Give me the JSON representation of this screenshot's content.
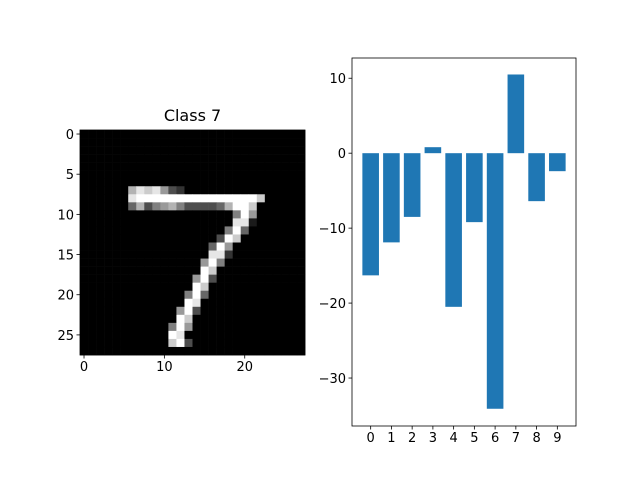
{
  "chart_data": [
    {
      "type": "image",
      "title": "Class 7",
      "xlim": [
        -0.5,
        27.5
      ],
      "ylim": [
        27.5,
        -0.5
      ],
      "xticks": [
        0,
        10,
        20
      ],
      "yticks": [
        0,
        5,
        10,
        15,
        20,
        25
      ],
      "z": [
        [
          0,
          0,
          0,
          0,
          0,
          0,
          0,
          0,
          0,
          0,
          0,
          0,
          0,
          0,
          0,
          0,
          0,
          0,
          0,
          0,
          0,
          0,
          0,
          0,
          0,
          0,
          0,
          0
        ],
        [
          0,
          0,
          0,
          0,
          0,
          0,
          0,
          0,
          0,
          0,
          0,
          0,
          0,
          0,
          0,
          0,
          0,
          0,
          0,
          0,
          0,
          0,
          0,
          0,
          0,
          0,
          0,
          0
        ],
        [
          0,
          0,
          0,
          0,
          0,
          0,
          0,
          0,
          0,
          0,
          0,
          0,
          0,
          0,
          0,
          0,
          0,
          0,
          0,
          0,
          0,
          0,
          0,
          0,
          0,
          0,
          0,
          0
        ],
        [
          0,
          0,
          0,
          0,
          0,
          0,
          0,
          0,
          0,
          0,
          0,
          0,
          0,
          0,
          0,
          0,
          0,
          0,
          0,
          0,
          0,
          0,
          0,
          0,
          0,
          0,
          0,
          0
        ],
        [
          0,
          0,
          0,
          0,
          0,
          0,
          0,
          0,
          0,
          0,
          0,
          0,
          0,
          0,
          0,
          0,
          0,
          0,
          0,
          0,
          0,
          0,
          0,
          0,
          0,
          0,
          0,
          0
        ],
        [
          0,
          0,
          0,
          0,
          0,
          0,
          0,
          0,
          0,
          0,
          0,
          0,
          0,
          0,
          0,
          0,
          0,
          0,
          0,
          0,
          0,
          0,
          0,
          0,
          0,
          0,
          0,
          0
        ],
        [
          0,
          0,
          0,
          0,
          0,
          0,
          0,
          0,
          0,
          0,
          0,
          0,
          0,
          0,
          0,
          0,
          0,
          0,
          0,
          0,
          0,
          0,
          0,
          0,
          0,
          0,
          0,
          0
        ],
        [
          0,
          0,
          0,
          0,
          0,
          0,
          0.7,
          0.9,
          0.8,
          0.9,
          0.6,
          0.3,
          0.2,
          0,
          0,
          0,
          0,
          0,
          0,
          0,
          0,
          0,
          0,
          0,
          0,
          0,
          0,
          0
        ],
        [
          0,
          0,
          0,
          0,
          0,
          0,
          0.9,
          1,
          1,
          1,
          1,
          1,
          1,
          1,
          1,
          1,
          1,
          1,
          1,
          1,
          1,
          1,
          0.8,
          0,
          0,
          0,
          0,
          0
        ],
        [
          0,
          0,
          0,
          0,
          0,
          0,
          0.4,
          0.7,
          0.3,
          0.5,
          0.6,
          0.7,
          0.5,
          0.3,
          0.3,
          0.3,
          0.3,
          0.4,
          0.7,
          1,
          1,
          0.8,
          0,
          0,
          0,
          0,
          0,
          0
        ],
        [
          0,
          0,
          0,
          0,
          0,
          0,
          0,
          0,
          0,
          0,
          0,
          0,
          0,
          0,
          0,
          0,
          0,
          0,
          0,
          0.5,
          1,
          0.6,
          0,
          0,
          0,
          0,
          0,
          0
        ],
        [
          0,
          0,
          0,
          0,
          0,
          0,
          0,
          0,
          0,
          0,
          0,
          0,
          0,
          0,
          0,
          0,
          0,
          0,
          0,
          0.9,
          0.9,
          0.1,
          0,
          0,
          0,
          0,
          0,
          0
        ],
        [
          0,
          0,
          0,
          0,
          0,
          0,
          0,
          0,
          0,
          0,
          0,
          0,
          0,
          0,
          0,
          0,
          0,
          0,
          0.5,
          1,
          0.4,
          0,
          0,
          0,
          0,
          0,
          0,
          0
        ],
        [
          0,
          0,
          0,
          0,
          0,
          0,
          0,
          0,
          0,
          0,
          0,
          0,
          0,
          0,
          0,
          0,
          0,
          0.3,
          1,
          0.8,
          0,
          0,
          0,
          0,
          0,
          0,
          0,
          0
        ],
        [
          0,
          0,
          0,
          0,
          0,
          0,
          0,
          0,
          0,
          0,
          0,
          0,
          0,
          0,
          0,
          0,
          0.4,
          1,
          0.6,
          0,
          0,
          0,
          0,
          0,
          0,
          0,
          0,
          0
        ],
        [
          0,
          0,
          0,
          0,
          0,
          0,
          0,
          0,
          0,
          0,
          0,
          0,
          0,
          0,
          0,
          0,
          0.9,
          0.9,
          0.2,
          0,
          0,
          0,
          0,
          0,
          0,
          0,
          0,
          0
        ],
        [
          0,
          0,
          0,
          0,
          0,
          0,
          0,
          0,
          0,
          0,
          0,
          0,
          0,
          0,
          0,
          0.6,
          1,
          0.5,
          0,
          0,
          0,
          0,
          0,
          0,
          0,
          0,
          0,
          0
        ],
        [
          0,
          0,
          0,
          0,
          0,
          0,
          0,
          0,
          0,
          0,
          0,
          0,
          0,
          0,
          0,
          1,
          0.8,
          0,
          0,
          0,
          0,
          0,
          0,
          0,
          0,
          0,
          0,
          0
        ],
        [
          0,
          0,
          0,
          0,
          0,
          0,
          0,
          0,
          0,
          0,
          0,
          0,
          0,
          0,
          0.6,
          1,
          0.3,
          0,
          0,
          0,
          0,
          0,
          0,
          0,
          0,
          0,
          0,
          0
        ],
        [
          0,
          0,
          0,
          0,
          0,
          0,
          0,
          0,
          0,
          0,
          0,
          0,
          0,
          0,
          1,
          0.8,
          0,
          0,
          0,
          0,
          0,
          0,
          0,
          0,
          0,
          0,
          0,
          0
        ],
        [
          0,
          0,
          0,
          0,
          0,
          0,
          0,
          0,
          0,
          0,
          0,
          0,
          0,
          0.5,
          1,
          0.4,
          0,
          0,
          0,
          0,
          0,
          0,
          0,
          0,
          0,
          0,
          0,
          0
        ],
        [
          0,
          0,
          0,
          0,
          0,
          0,
          0,
          0,
          0,
          0,
          0,
          0,
          0,
          1,
          0.9,
          0,
          0,
          0,
          0,
          0,
          0,
          0,
          0,
          0,
          0,
          0,
          0,
          0
        ],
        [
          0,
          0,
          0,
          0,
          0,
          0,
          0,
          0,
          0,
          0,
          0,
          0,
          0.6,
          1,
          0.3,
          0,
          0,
          0,
          0,
          0,
          0,
          0,
          0,
          0,
          0,
          0,
          0,
          0
        ],
        [
          0,
          0,
          0,
          0,
          0,
          0,
          0,
          0,
          0,
          0,
          0,
          0,
          1,
          0.8,
          0,
          0,
          0,
          0,
          0,
          0,
          0,
          0,
          0,
          0,
          0,
          0,
          0,
          0
        ],
        [
          0,
          0,
          0,
          0,
          0,
          0,
          0,
          0,
          0,
          0,
          0,
          0.5,
          1,
          0.6,
          0,
          0,
          0,
          0,
          0,
          0,
          0,
          0,
          0,
          0,
          0,
          0,
          0,
          0
        ],
        [
          0,
          0,
          0,
          0,
          0,
          0,
          0,
          0,
          0,
          0,
          0,
          1,
          0.9,
          0,
          0,
          0,
          0,
          0,
          0,
          0,
          0,
          0,
          0,
          0,
          0,
          0,
          0,
          0
        ],
        [
          0,
          0,
          0,
          0,
          0,
          0,
          0,
          0,
          0,
          0,
          0,
          0.8,
          1,
          0.3,
          0,
          0,
          0,
          0,
          0,
          0,
          0,
          0,
          0,
          0,
          0,
          0,
          0,
          0
        ],
        [
          0,
          0,
          0,
          0,
          0,
          0,
          0,
          0,
          0,
          0,
          0,
          0,
          0,
          0,
          0,
          0,
          0,
          0,
          0,
          0,
          0,
          0,
          0,
          0,
          0,
          0,
          0,
          0
        ]
      ]
    },
    {
      "type": "bar",
      "x": [
        0,
        1,
        2,
        3,
        4,
        5,
        6,
        7,
        8,
        9
      ],
      "values": [
        -16.3,
        -11.9,
        -8.5,
        0.8,
        -20.5,
        -9.2,
        -34.1,
        10.5,
        -6.4,
        -2.4
      ],
      "color": "#1f77b4",
      "xlim": [
        -0.9,
        9.9
      ],
      "xticks": [
        0,
        1,
        2,
        3,
        4,
        5,
        6,
        7,
        8,
        9
      ],
      "ylim": [
        -36.4,
        12.7
      ],
      "yticks": [
        {
          "value": -30,
          "label": "−30"
        },
        {
          "value": -20,
          "label": "−20"
        },
        {
          "value": -10,
          "label": "−10"
        },
        0,
        10
      ]
    }
  ]
}
